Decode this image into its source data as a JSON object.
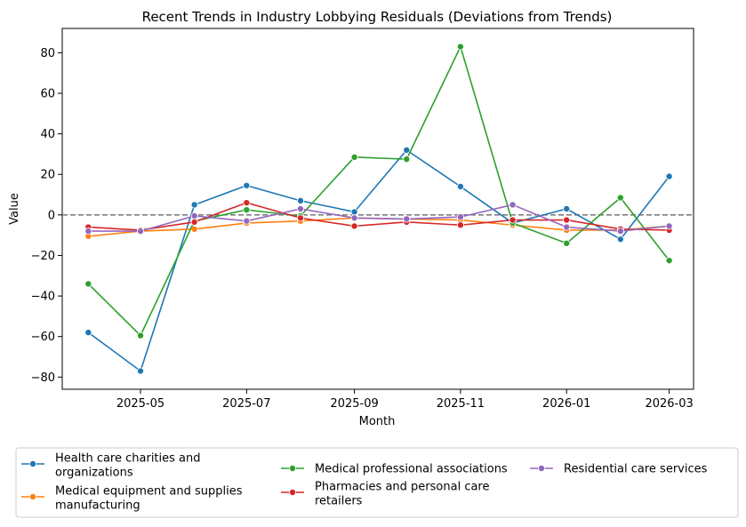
{
  "chart_data": {
    "type": "line",
    "title": "Recent Trends in Industry Lobbying Residuals (Deviations from Trends)",
    "xlabel": "Month",
    "ylabel": "Value",
    "x": [
      "2025-04",
      "2025-05",
      "2025-06",
      "2025-07",
      "2025-08",
      "2025-09",
      "2025-10",
      "2025-11",
      "2025-12",
      "2026-01",
      "2026-02",
      "2026-03"
    ],
    "x_ticks": [
      "2025-05",
      "2025-07",
      "2025-09",
      "2025-11",
      "2026-01",
      "2026-03"
    ],
    "y_ticks": [
      -80,
      -60,
      -40,
      -20,
      0,
      20,
      40,
      60,
      80
    ],
    "ylim": [
      -86,
      92
    ],
    "xlim": [
      "2025-03-17",
      "2026-03-15"
    ],
    "reference_line": {
      "y": 0,
      "style": "dashed",
      "color": "#808080"
    },
    "grid": false,
    "legend_position": "bottom",
    "series": [
      {
        "name": "Health care charities and organizations",
        "color": "#1f77b4",
        "values": [
          -58,
          -77,
          5,
          14.5,
          7,
          1.5,
          32,
          14,
          -4,
          3,
          -12,
          19
        ]
      },
      {
        "name": "Medical equipment and supplies manufacturing",
        "color": "#ff7f0e",
        "values": [
          -10.5,
          -8,
          -7,
          -4,
          -3,
          -1.5,
          -2,
          -2.5,
          -5,
          -7.5,
          -7.5,
          -5.5
        ]
      },
      {
        "name": "Medical professional associations",
        "color": "#2ca02c",
        "values": [
          -34,
          -59.5,
          -3,
          2.5,
          -0.5,
          28.5,
          27.5,
          83,
          -4,
          -14,
          8.5,
          -22.5
        ]
      },
      {
        "name": "Pharmacies and personal care retailers",
        "color": "#d62728",
        "values": [
          -6,
          -7.5,
          -3.5,
          6,
          -1.5,
          -5.5,
          -3.5,
          -5,
          -2.5,
          -2.5,
          -7,
          -7.5
        ]
      },
      {
        "name": "Residential care services",
        "color": "#9467bd",
        "values": [
          -8,
          -8,
          -0.5,
          -3,
          3,
          -1.5,
          -2,
          -1,
          5,
          -6,
          -8,
          -5.5
        ]
      }
    ]
  }
}
